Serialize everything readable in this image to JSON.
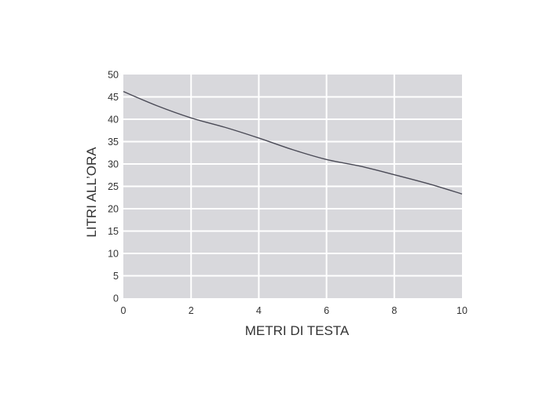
{
  "chart_data": {
    "type": "line",
    "title": "",
    "xlabel": "METRI DI TESTA",
    "ylabel": "LITRI ALL’ORA",
    "xlim": [
      0,
      10
    ],
    "ylim": [
      0,
      50
    ],
    "xticks": [
      "0",
      "2",
      "4",
      "6",
      "8",
      "10"
    ],
    "yticks": [
      "0",
      "5",
      "10",
      "15",
      "20",
      "25",
      "30",
      "35",
      "40",
      "45",
      "50"
    ],
    "grid": true,
    "legend": "none",
    "colors": {
      "plot_background": "#d8d8dc",
      "grid": "#ffffff",
      "line": "#4a4a56",
      "text": "#333333"
    },
    "series": [
      {
        "x": [
          0,
          1,
          2,
          3,
          4,
          5,
          6,
          7,
          8,
          9,
          10
        ],
        "y": [
          46.2,
          43,
          40.3,
          38.2,
          35.8,
          33.2,
          31,
          29.5,
          27.6,
          25.6,
          23.3
        ]
      }
    ]
  }
}
